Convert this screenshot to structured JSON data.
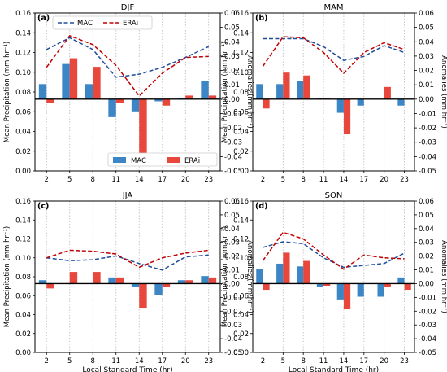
{
  "figure": {
    "x_axis_label": "Local Standard Time (hr)",
    "left_axis_label": "Mean Precipitation (mm hr⁻¹)",
    "right_axis_label": "Anomalies (mm hr⁻¹)",
    "legend_lines": [
      "MAC",
      "ERAi"
    ],
    "legend_bars": [
      "MAC",
      "ERAi"
    ],
    "colors": {
      "mac_line": "#1f4e9c",
      "erai_line": "#c00000",
      "mac_bar": "#3d86c6",
      "erai_bar": "#e8473c",
      "zero_line": "#000000",
      "grid": "#b8b8b8"
    }
  },
  "chart_data": [
    {
      "type": "line+bar",
      "panel_label": "(a)",
      "title": "DJF",
      "x": [
        2,
        5,
        8,
        11,
        14,
        17,
        20,
        23
      ],
      "ylim_left": [
        0.0,
        0.16
      ],
      "yticks_left": [
        "0.00",
        "0.02",
        "0.04",
        "0.06",
        "0.08",
        "0.10",
        "0.12",
        "0.14",
        "0.16"
      ],
      "ylim_right": [
        -0.05,
        0.06
      ],
      "yticks_right": [
        "-0.05",
        "-0.04",
        "-0.03",
        "-0.02",
        "-0.01",
        "0.00",
        "0.01",
        "0.02",
        "0.03",
        "0.04",
        "0.05",
        "0.06"
      ],
      "lines": [
        {
          "name": "MAC",
          "axis": "left",
          "values": [
            0.123,
            0.135,
            0.123,
            0.095,
            0.098,
            0.105,
            0.115,
            0.126
          ]
        },
        {
          "name": "ERAi",
          "axis": "left",
          "values": [
            0.105,
            0.137,
            0.128,
            0.107,
            0.076,
            0.099,
            0.115,
            0.116
          ]
        }
      ],
      "bars": [
        {
          "name": "MAC",
          "axis": "right",
          "values": [
            0.0105,
            0.0245,
            0.0105,
            -0.0125,
            -0.0085,
            -0.0015,
            0.0005,
            0.0125
          ]
        },
        {
          "name": "ERAi",
          "axis": "right",
          "values": [
            -0.0025,
            0.0285,
            0.0225,
            -0.0025,
            -0.0375,
            -0.0045,
            0.0025,
            0.0025
          ]
        }
      ],
      "legend": "top-left (lines), bottom-right (bars)"
    },
    {
      "type": "line+bar",
      "panel_label": "(b)",
      "title": "MAM",
      "x": [
        2,
        5,
        8,
        11,
        14,
        17,
        20,
        23
      ],
      "ylim_left": [
        0.0,
        0.16
      ],
      "yticks_left": [
        "0.00",
        "0.02",
        "0.04",
        "0.06",
        "0.08",
        "0.10",
        "0.12",
        "0.14",
        "0.16"
      ],
      "ylim_right": [
        -0.05,
        0.06
      ],
      "yticks_right": [
        "-0.05",
        "-0.04",
        "-0.03",
        "-0.02",
        "-0.01",
        "0.00",
        "0.01",
        "0.02",
        "0.03",
        "0.04",
        "0.05",
        "0.06"
      ],
      "lines": [
        {
          "name": "MAC",
          "axis": "left",
          "values": [
            0.134,
            0.134,
            0.134,
            0.126,
            0.112,
            0.116,
            0.127,
            0.12
          ]
        },
        {
          "name": "ERAi",
          "axis": "left",
          "values": [
            0.106,
            0.136,
            0.135,
            0.12,
            0.099,
            0.12,
            0.13,
            0.123
          ]
        }
      ],
      "bars": [
        {
          "name": "MAC",
          "axis": "right",
          "values": [
            0.0105,
            0.0105,
            0.0125,
            0.0005,
            -0.0095,
            -0.0045,
            0.0,
            -0.0045
          ]
        },
        {
          "name": "ERAi",
          "axis": "right",
          "values": [
            -0.0065,
            0.0185,
            0.0165,
            0.0005,
            -0.0245,
            0.0,
            0.0085,
            0.0
          ]
        }
      ],
      "legend": ""
    },
    {
      "type": "line+bar",
      "panel_label": "(c)",
      "title": "JJA",
      "x": [
        2,
        5,
        8,
        11,
        14,
        17,
        20,
        23
      ],
      "ylim_left": [
        0.0,
        0.16
      ],
      "yticks_left": [
        "0.00",
        "0.02",
        "0.04",
        "0.06",
        "0.08",
        "0.10",
        "0.12",
        "0.14",
        "0.16"
      ],
      "ylim_right": [
        -0.05,
        0.06
      ],
      "yticks_right": [
        "-0.05",
        "-0.04",
        "-0.03",
        "-0.02",
        "-0.01",
        "0.00",
        "0.01",
        "0.02",
        "0.03",
        "0.04",
        "0.05",
        "0.06"
      ],
      "lines": [
        {
          "name": "MAC",
          "axis": "left",
          "values": [
            0.1,
            0.097,
            0.098,
            0.102,
            0.094,
            0.087,
            0.101,
            0.103
          ]
        },
        {
          "name": "ERAi",
          "axis": "left",
          "values": [
            0.1,
            0.108,
            0.107,
            0.104,
            0.09,
            0.1,
            0.105,
            0.108
          ]
        }
      ],
      "bars": [
        {
          "name": "MAC",
          "axis": "right",
          "values": [
            0.0025,
            0.0,
            0.0,
            0.0045,
            -0.0025,
            -0.0085,
            0.0025,
            0.0055
          ]
        },
        {
          "name": "ERAi",
          "axis": "right",
          "values": [
            -0.0035,
            0.0085,
            0.0085,
            0.0045,
            -0.0175,
            -0.0025,
            0.0025,
            0.0045
          ]
        }
      ],
      "legend": ""
    },
    {
      "type": "line+bar",
      "panel_label": "(d)",
      "title": "SON",
      "x": [
        2,
        5,
        8,
        11,
        14,
        17,
        20,
        23
      ],
      "ylim_left": [
        0.0,
        0.16
      ],
      "yticks_left": [
        "0.00",
        "0.02",
        "0.04",
        "0.06",
        "0.08",
        "0.10",
        "0.12",
        "0.14",
        "0.16"
      ],
      "ylim_right": [
        -0.05,
        0.06
      ],
      "yticks_right": [
        "-0.05",
        "-0.04",
        "-0.03",
        "-0.02",
        "-0.01",
        "0.00",
        "0.01",
        "0.02",
        "0.03",
        "0.04",
        "0.05",
        "0.06"
      ],
      "lines": [
        {
          "name": "MAC",
          "axis": "left",
          "values": [
            0.111,
            0.117,
            0.115,
            0.1,
            0.09,
            0.092,
            0.094,
            0.105
          ]
        },
        {
          "name": "ERAi",
          "axis": "left",
          "values": [
            0.097,
            0.127,
            0.12,
            0.103,
            0.088,
            0.103,
            0.1,
            0.099
          ]
        }
      ],
      "bars": [
        {
          "name": "MAC",
          "axis": "right",
          "values": [
            0.0105,
            0.0145,
            0.0125,
            -0.0025,
            -0.0115,
            -0.0095,
            -0.0095,
            0.0045
          ]
        },
        {
          "name": "ERAi",
          "axis": "right",
          "values": [
            -0.0045,
            0.0225,
            0.0165,
            -0.0015,
            -0.0185,
            0.0,
            -0.0025,
            -0.0045
          ]
        }
      ],
      "legend": ""
    }
  ]
}
